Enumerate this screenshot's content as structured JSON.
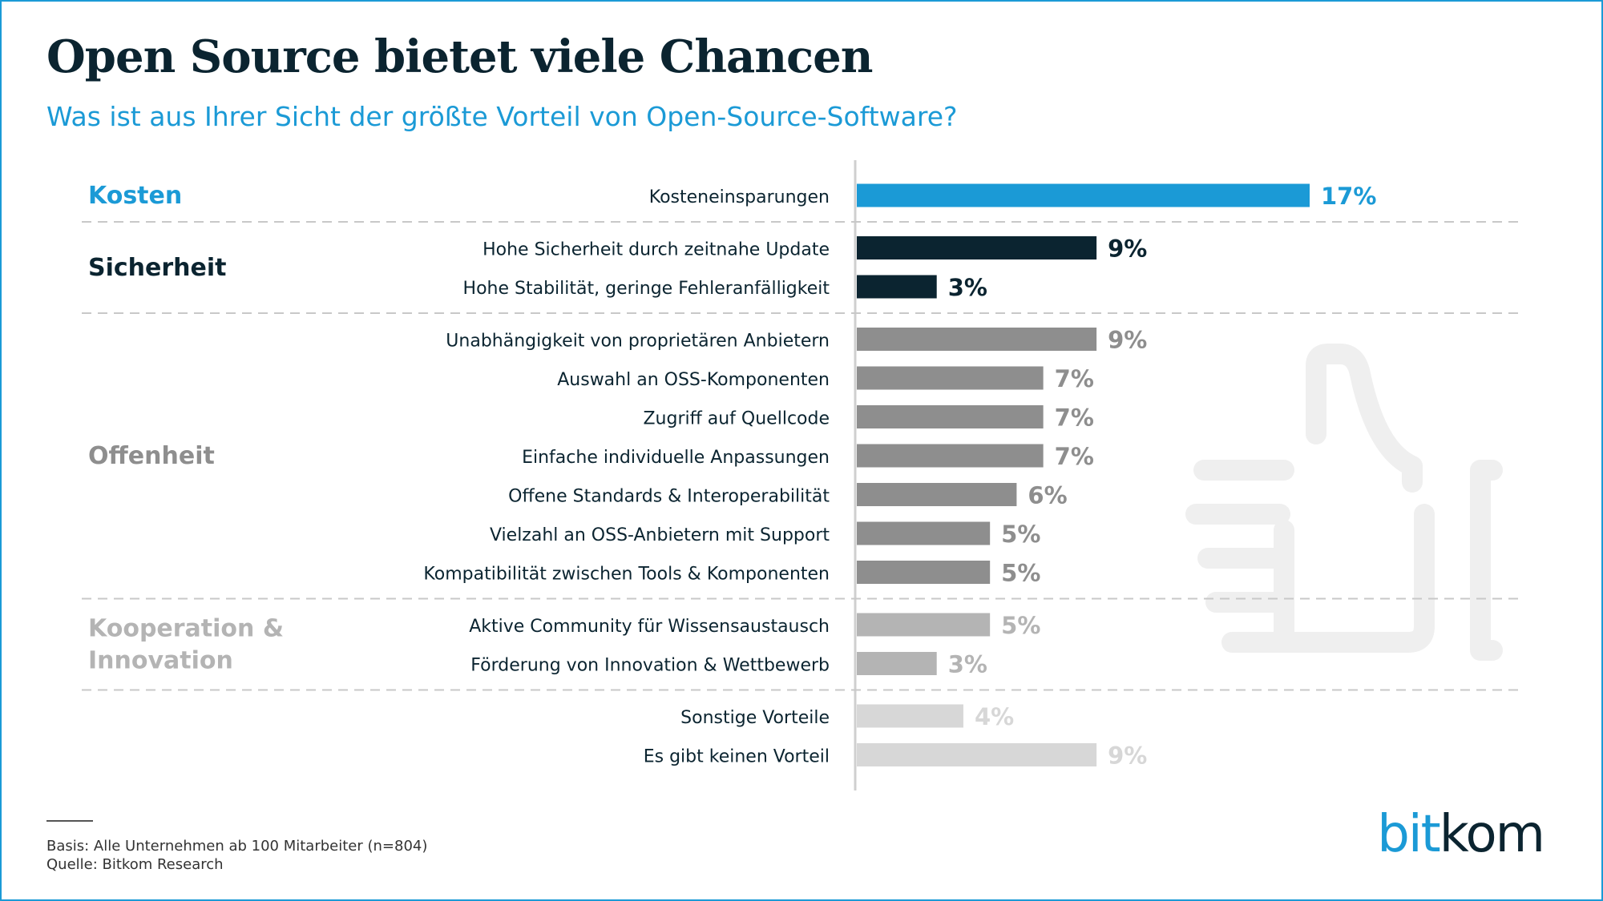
{
  "title": "Open Source bietet viele Chancen",
  "subtitle": "Was ist aus Ihrer Sicht der größte Vorteil von Open-Source-Software?",
  "footer": {
    "basis": "Basis: Alle Unternehmen ab 100 Mitarbeiter (n=804)",
    "source": "Quelle: Bitkom Research"
  },
  "logo": {
    "part1": "bit",
    "part2": "kom"
  },
  "chart_data": {
    "type": "bar",
    "orientation": "horizontal",
    "unit": "%",
    "xlim": [
      0,
      17
    ],
    "groups": [
      {
        "name": "Kosten",
        "color": "#1b9ad6",
        "label_color": "#1b9ad6",
        "value_color": "#1b9ad6",
        "items": [
          {
            "label": "Kosteneinsparungen",
            "value": 17
          }
        ]
      },
      {
        "name": "Sicherheit",
        "color": "#0b2430",
        "label_color": "#0b2430",
        "value_color": "#0b2430",
        "items": [
          {
            "label": "Hohe Sicherheit durch zeitnahe Update",
            "value": 9
          },
          {
            "label": "Hohe Stabilität, geringe Fehleranfälligkeit",
            "value": 3
          }
        ]
      },
      {
        "name": "Offenheit",
        "color": "#8e8e8e",
        "label_color": "#8e8e8e",
        "value_color": "#8e8e8e",
        "items": [
          {
            "label": "Unabhängigkeit von proprietären Anbietern",
            "value": 9
          },
          {
            "label": "Auswahl an OSS-Komponenten",
            "value": 7
          },
          {
            "label": "Zugriff auf Quellcode",
            "value": 7
          },
          {
            "label": "Einfache individuelle Anpassungen",
            "value": 7
          },
          {
            "label": "Offene Standards & Interoperabilität",
            "value": 6
          },
          {
            "label": "Vielzahl an OSS-Anbietern mit Support",
            "value": 5
          },
          {
            "label": "Kompatibilität zwischen Tools & Komponenten",
            "value": 5
          }
        ]
      },
      {
        "name": "Kooperation & Innovation",
        "name_lines": [
          "Kooperation &",
          "Innovation"
        ],
        "color": "#b4b4b4",
        "label_color": "#b4b4b4",
        "value_color": "#b4b4b4",
        "items": [
          {
            "label": "Aktive Community für Wissensaustausch",
            "value": 5
          },
          {
            "label": "Förderung von Innovation & Wettbewerb",
            "value": 3
          }
        ]
      },
      {
        "name": "",
        "color": "#d7d7d7",
        "label_color": "#0b2430",
        "value_color": "#d7d7d7",
        "items": [
          {
            "label": "Sonstige Vorteile",
            "value": 4
          },
          {
            "label": "Es gibt keinen Vorteil",
            "value": 9
          }
        ]
      }
    ],
    "decoration_icon": "thumbs-up-icon"
  }
}
